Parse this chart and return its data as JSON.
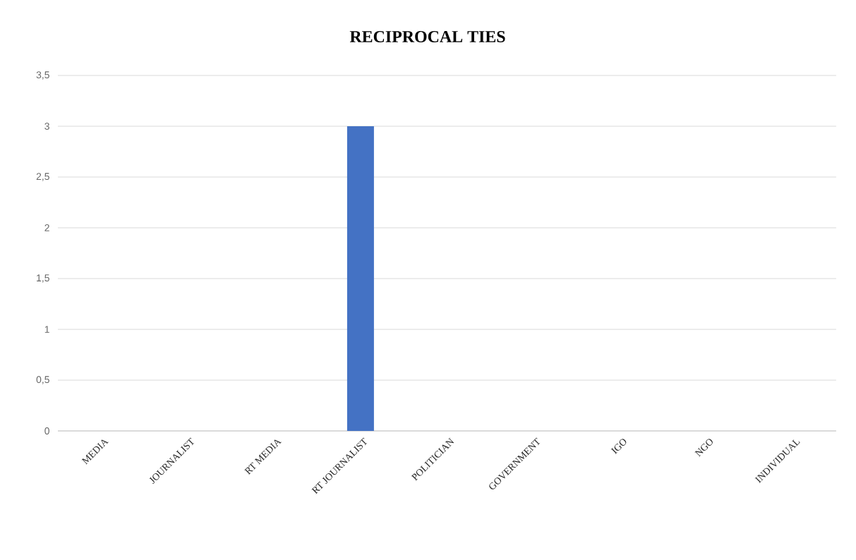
{
  "chart_data": {
    "type": "bar",
    "title": "RECIPROCAL TIES",
    "categories": [
      "MEDIA",
      "JOURNALIST",
      "RT MEDIA",
      "RT JOURNALIST",
      "POLITICIAN",
      "GOVERNMENT",
      "IGO",
      "NGO",
      "INDIVIDUAL"
    ],
    "values": [
      0,
      0,
      0,
      3,
      0,
      0,
      0,
      0,
      0
    ],
    "color": "#4472c4",
    "ylim": [
      0,
      3.5
    ],
    "yticks": [
      0,
      {
        "value": 0.5,
        "label": "0,5"
      },
      1,
      {
        "value": 1.5,
        "label": "1,5"
      },
      2,
      {
        "value": 2.5,
        "label": "2,5"
      },
      3,
      {
        "value": 3.5,
        "label": "3,5"
      }
    ],
    "grid": "y"
  }
}
